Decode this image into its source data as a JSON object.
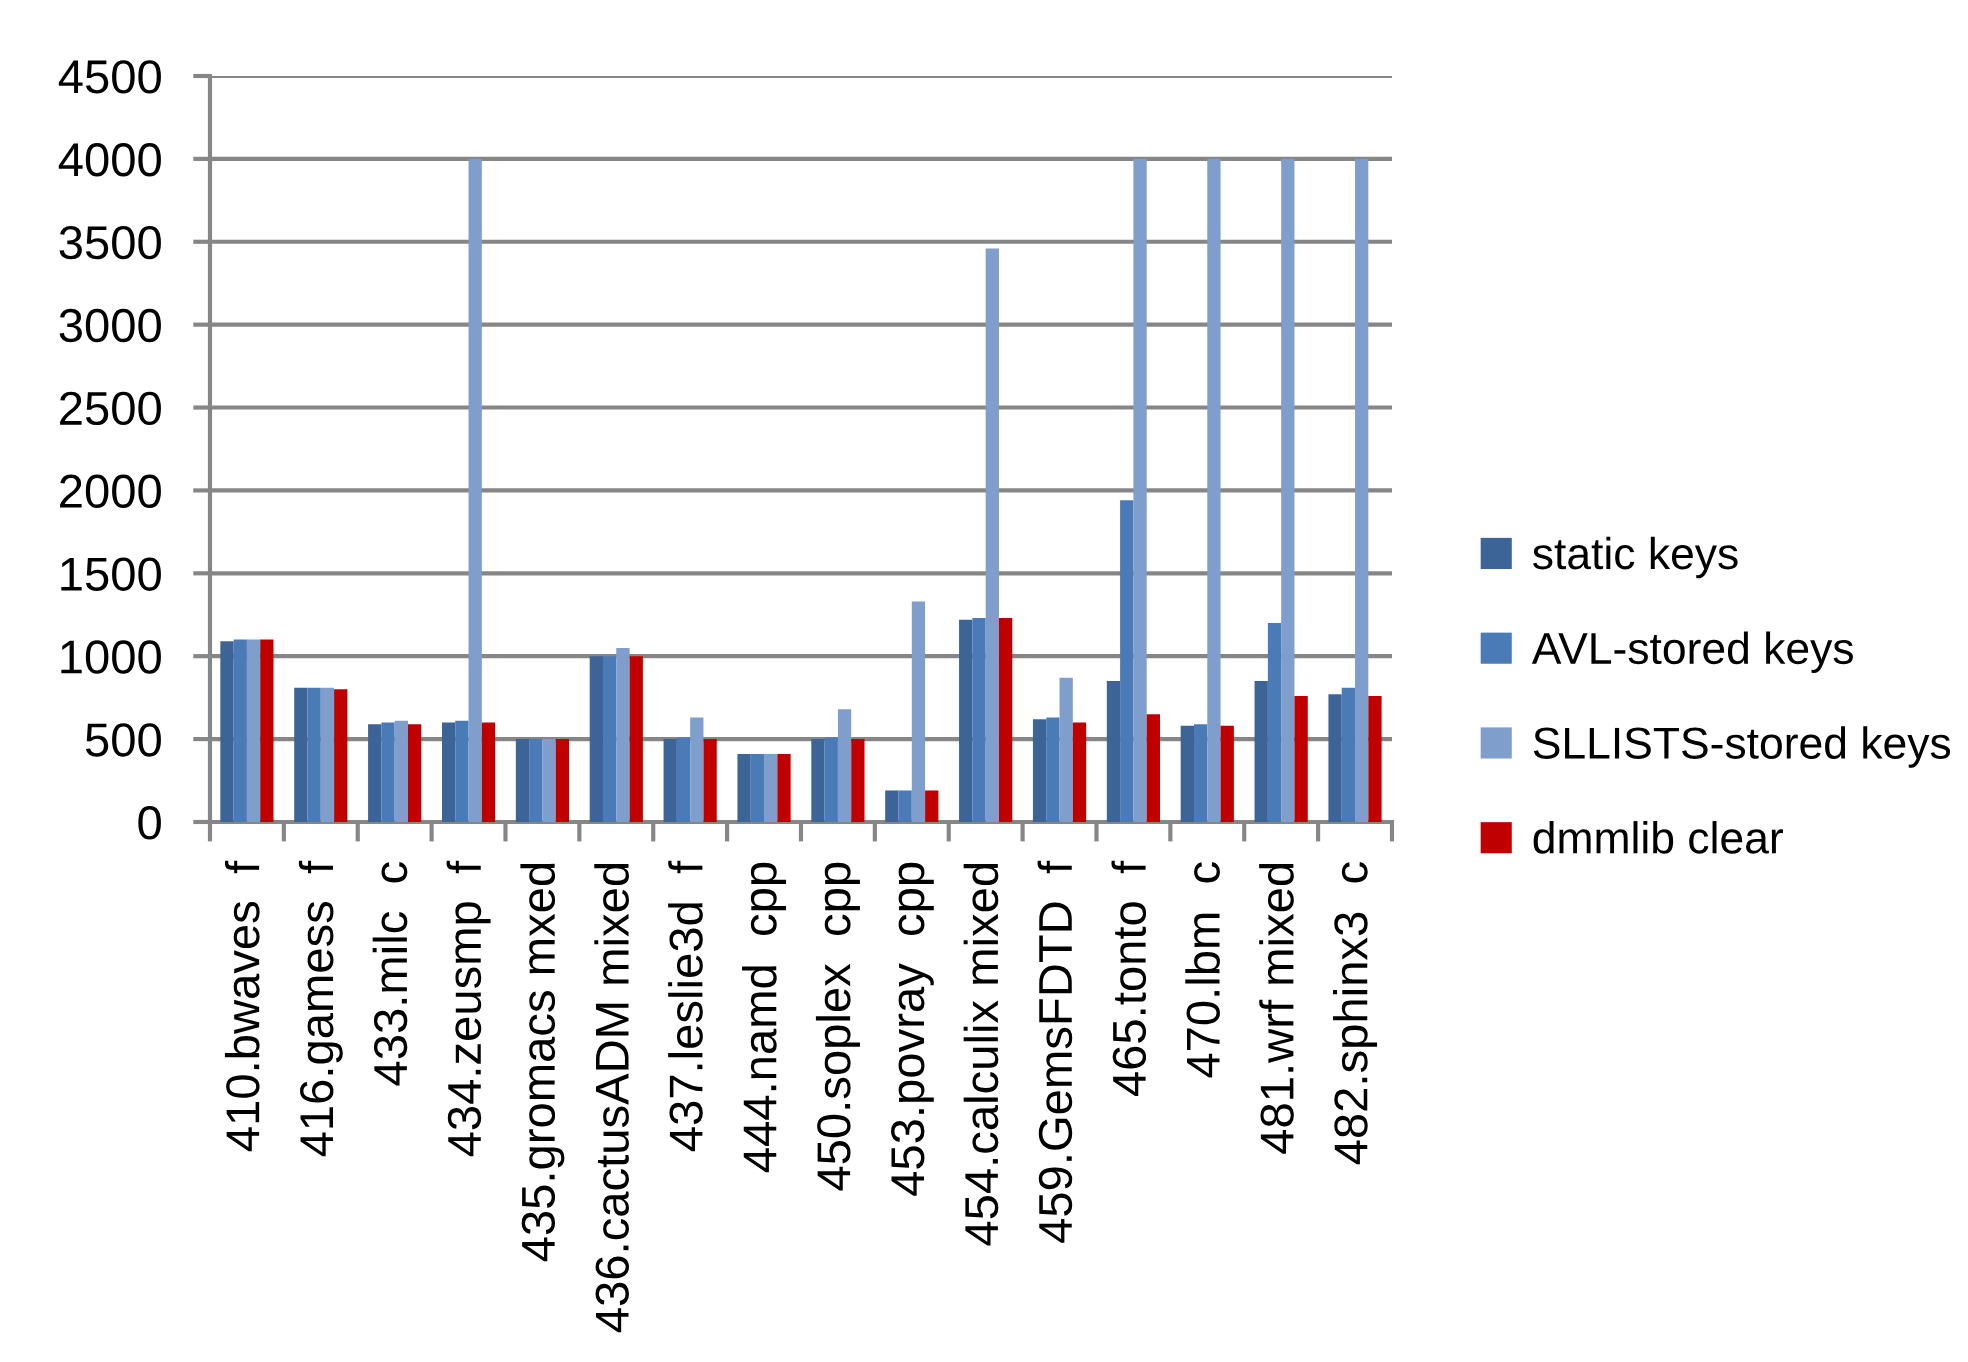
{
  "chart_data": {
    "type": "bar",
    "categories": [
      "410.bwaves  f",
      "416.gamess  f",
      "433.milc  c",
      "434.zeusmp  f",
      "435.gromacs mxed",
      "436.cactusADM mixed",
      "437.leslie3d  f",
      "444.namd  cpp",
      "450.soplex  cpp",
      "453.povray  cpp",
      "454.calculix mixed",
      "459.GemsFDTD  f",
      "465.tonto  f",
      "470.lbm  c",
      "481.wrf mixed",
      "482.sphinx3  c"
    ],
    "series": [
      {
        "name": "static keys",
        "color": "#3c6496",
        "values": [
          1090,
          810,
          590,
          600,
          500,
          1000,
          500,
          410,
          500,
          190,
          1220,
          620,
          850,
          580,
          850,
          770
        ]
      },
      {
        "name": "AVL-stored keys",
        "color": "#4a7bb7",
        "values": [
          1100,
          810,
          600,
          610,
          500,
          1000,
          510,
          410,
          510,
          190,
          1230,
          630,
          1940,
          590,
          1200,
          810
        ]
      },
      {
        "name": "SLLISTS-stored keys",
        "color": "#7f9ecb",
        "values": [
          1100,
          810,
          610,
          4000,
          500,
          1050,
          630,
          410,
          680,
          1330,
          3460,
          870,
          4000,
          4000,
          4000,
          4000
        ]
      },
      {
        "name": "dmmlib clear",
        "color": "#c00000",
        "values": [
          1100,
          800,
          590,
          600,
          500,
          1000,
          500,
          410,
          500,
          190,
          1230,
          600,
          650,
          580,
          760,
          760
        ]
      }
    ],
    "ylim": [
      0,
      4500
    ],
    "yticks": [
      0,
      500,
      1000,
      1500,
      2000,
      2500,
      3000,
      3500,
      4000,
      4500
    ],
    "grid": "y",
    "legend": "right"
  }
}
